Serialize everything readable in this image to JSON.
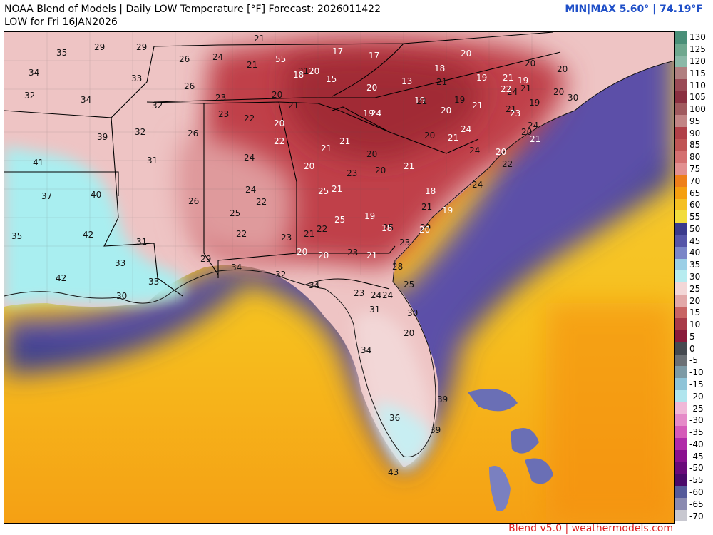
{
  "header": {
    "title": "NOAA Blend of Models | Daily LOW Temperature [°F] Forecast: 2026011422",
    "subtitle": "LOW for Fri 16JAN2026",
    "minmax": "MIN|MAX 5.60° | 74.19°F"
  },
  "credit": "Blend v5.0 | weathermodels.com",
  "colors": {
    "cold_inland": "#c0414a",
    "cool_inland": "#eec4c4",
    "mild_coast": "#a9eef0",
    "near_shore": "#3b3f9e",
    "warm_gulf": "#f4b400",
    "very_warm": "#ff8c00",
    "label_black": "#111111",
    "label_white": "#ffffff",
    "minmax_blue": "#2050c8",
    "credit_red": "#e02020"
  },
  "scale": {
    "labels": [
      "130",
      "125",
      "120",
      "115",
      "110",
      "105",
      "100",
      "95",
      "90",
      "85",
      "80",
      "75",
      "70",
      "65",
      "60",
      "55",
      "50",
      "45",
      "40",
      "35",
      "30",
      "25",
      "20",
      "15",
      "10",
      "5",
      "0",
      "-5",
      "-10",
      "-15",
      "-20",
      "-25",
      "-30",
      "-35",
      "-40",
      "-45",
      "-50",
      "-55",
      "-60",
      "-65",
      "-70"
    ],
    "colors": [
      "#4a8f78",
      "#6fa88f",
      "#8bb9a8",
      "#b07f80",
      "#9a4a55",
      "#8a3040",
      "#a05a5e",
      "#c28585",
      "#b04048",
      "#c05555",
      "#d47070",
      "#e29090",
      "#ee7f1a",
      "#f59f10",
      "#f5c022",
      "#f2dc3c",
      "#3a3a8c",
      "#5555a8",
      "#7a86c8",
      "#9bcfe6",
      "#b7ecf0",
      "#f3d7d7",
      "#e2a8a8",
      "#c86464",
      "#a83a48",
      "#8a1a3a",
      "#454a50",
      "#6b7075",
      "#7d9aa5",
      "#8fc4d8",
      "#b0e5ee",
      "#f0b8d8",
      "#e58ac8",
      "#d55ab8",
      "#b02aa8",
      "#8a108e",
      "#6a0a7a",
      "#4a0a6a",
      "#555a9a",
      "#8a8ab0",
      "#c8c8d0"
    ]
  },
  "map": {
    "points": [
      {
        "v": "21",
        "c": "b"
      },
      {
        "v": "29",
        "c": "b"
      },
      {
        "v": "29",
        "c": "b"
      },
      {
        "v": "35",
        "c": "b"
      },
      {
        "v": "34",
        "c": "b"
      },
      {
        "v": "33",
        "c": "b"
      },
      {
        "v": "32",
        "c": "b"
      },
      {
        "v": "34",
        "c": "b"
      },
      {
        "v": "39",
        "c": "b"
      },
      {
        "v": "41",
        "c": "b"
      },
      {
        "v": "37",
        "c": "b"
      },
      {
        "v": "40",
        "c": "b"
      },
      {
        "v": "35",
        "c": "b"
      },
      {
        "v": "42",
        "c": "b"
      },
      {
        "v": "42",
        "c": "b"
      },
      {
        "v": "33",
        "c": "b"
      },
      {
        "v": "30",
        "c": "b"
      },
      {
        "v": "31",
        "c": "b"
      },
      {
        "v": "31",
        "c": "b"
      },
      {
        "v": "32",
        "c": "b"
      },
      {
        "v": "32",
        "c": "b"
      },
      {
        "v": "33",
        "c": "b"
      },
      {
        "v": "26",
        "c": "b"
      },
      {
        "v": "26",
        "c": "b"
      },
      {
        "v": "26",
        "c": "b"
      },
      {
        "v": "26",
        "c": "b"
      },
      {
        "v": "24",
        "c": "b"
      },
      {
        "v": "23",
        "c": "b"
      },
      {
        "v": "23",
        "c": "b"
      },
      {
        "v": "24",
        "c": "b"
      },
      {
        "v": "22",
        "c": "b"
      },
      {
        "v": "24",
        "c": "b"
      },
      {
        "v": "25",
        "c": "b"
      },
      {
        "v": "22",
        "c": "b"
      },
      {
        "v": "22",
        "c": "b"
      },
      {
        "v": "23",
        "c": "b"
      },
      {
        "v": "22",
        "c": "b"
      },
      {
        "v": "29",
        "c": "b"
      },
      {
        "v": "34",
        "c": "b"
      },
      {
        "v": "32",
        "c": "b"
      },
      {
        "v": "34",
        "c": "b"
      },
      {
        "v": "21",
        "c": "b"
      },
      {
        "v": "21",
        "c": "b"
      },
      {
        "v": "20",
        "c": "b"
      },
      {
        "v": "21",
        "c": "b"
      },
      {
        "v": "23",
        "c": "b"
      },
      {
        "v": "20",
        "c": "b"
      },
      {
        "v": "20",
        "c": "b"
      },
      {
        "v": "21",
        "c": "b"
      },
      {
        "v": "23",
        "c": "b"
      },
      {
        "v": "23",
        "c": "b"
      },
      {
        "v": "24",
        "c": "b"
      },
      {
        "v": "24",
        "c": "b"
      },
      {
        "v": "31",
        "c": "b"
      },
      {
        "v": "30",
        "c": "b"
      },
      {
        "v": "25",
        "c": "b"
      },
      {
        "v": "28",
        "c": "b"
      },
      {
        "v": "23",
        "c": "b"
      },
      {
        "v": "29",
        "c": "b"
      },
      {
        "v": "21",
        "c": "b"
      },
      {
        "v": "20",
        "c": "b"
      },
      {
        "v": "21",
        "c": "b"
      },
      {
        "v": "25",
        "c": "b"
      },
      {
        "v": "20",
        "c": "b"
      },
      {
        "v": "20",
        "c": "b"
      },
      {
        "v": "20",
        "c": "b"
      },
      {
        "v": "19",
        "c": "b"
      },
      {
        "v": "21",
        "c": "b"
      },
      {
        "v": "21",
        "c": "b"
      },
      {
        "v": "19",
        "c": "b"
      },
      {
        "v": "20",
        "c": "b"
      },
      {
        "v": "24",
        "c": "b"
      },
      {
        "v": "22",
        "c": "b"
      },
      {
        "v": "24",
        "c": "b"
      },
      {
        "v": "30",
        "c": "b"
      },
      {
        "v": "24",
        "c": "b"
      },
      {
        "v": "24",
        "c": "b"
      },
      {
        "v": "21",
        "c": "b"
      },
      {
        "v": "20",
        "c": "b"
      },
      {
        "v": "34",
        "c": "b"
      },
      {
        "v": "36",
        "c": "b"
      },
      {
        "v": "39",
        "c": "b"
      },
      {
        "v": "39",
        "c": "b"
      },
      {
        "v": "43",
        "c": "b"
      },
      {
        "v": "55",
        "c": "w"
      },
      {
        "v": "18",
        "c": "w"
      },
      {
        "v": "17",
        "c": "w"
      },
      {
        "v": "17",
        "c": "w"
      },
      {
        "v": "15",
        "c": "w"
      },
      {
        "v": "20",
        "c": "w"
      },
      {
        "v": "13",
        "c": "w"
      },
      {
        "v": "18",
        "c": "w"
      },
      {
        "v": "20",
        "c": "w"
      },
      {
        "v": "19",
        "c": "w"
      },
      {
        "v": "21",
        "c": "w"
      },
      {
        "v": "19",
        "c": "w"
      },
      {
        "v": "21",
        "c": "w"
      },
      {
        "v": "19",
        "c": "w"
      },
      {
        "v": "21",
        "c": "w"
      },
      {
        "v": "20",
        "c": "w"
      },
      {
        "v": "18",
        "c": "w"
      },
      {
        "v": "19",
        "c": "w"
      },
      {
        "v": "21",
        "c": "w"
      },
      {
        "v": "18",
        "c": "w"
      },
      {
        "v": "21",
        "c": "w"
      },
      {
        "v": "20",
        "c": "w"
      },
      {
        "v": "24",
        "c": "w"
      },
      {
        "v": "20",
        "c": "w"
      },
      {
        "v": "22",
        "c": "w"
      },
      {
        "v": "20",
        "c": "w"
      },
      {
        "v": "20",
        "c": "w"
      },
      {
        "v": "19",
        "c": "w"
      },
      {
        "v": "21",
        "c": "w"
      },
      {
        "v": "25",
        "c": "w"
      },
      {
        "v": "21",
        "c": "w"
      },
      {
        "v": "20",
        "c": "w"
      },
      {
        "v": "19",
        "c": "w"
      },
      {
        "v": "21",
        "c": "w"
      },
      {
        "v": "23",
        "c": "w"
      },
      {
        "v": "24",
        "c": "w"
      },
      {
        "v": "22",
        "c": "w"
      },
      {
        "v": "20",
        "c": "w"
      },
      {
        "v": "25",
        "c": "w"
      },
      {
        "v": "21",
        "c": "w"
      },
      {
        "v": "20",
        "c": "w"
      },
      {
        "v": "21",
        "c": "w"
      },
      {
        "v": "19",
        "c": "w"
      },
      {
        "v": "29",
        "c": "w"
      },
      {
        "v": "21",
        "c": "w"
      },
      {
        "v": "22",
        "c": "w"
      },
      {
        "v": "21",
        "c": "w"
      },
      {
        "v": "21",
        "c": "w"
      },
      {
        "v": "23",
        "c": "w"
      },
      {
        "v": "23",
        "c": "w"
      },
      {
        "v": "24",
        "c": "w"
      },
      {
        "v": "21",
        "c": "w"
      }
    ]
  }
}
